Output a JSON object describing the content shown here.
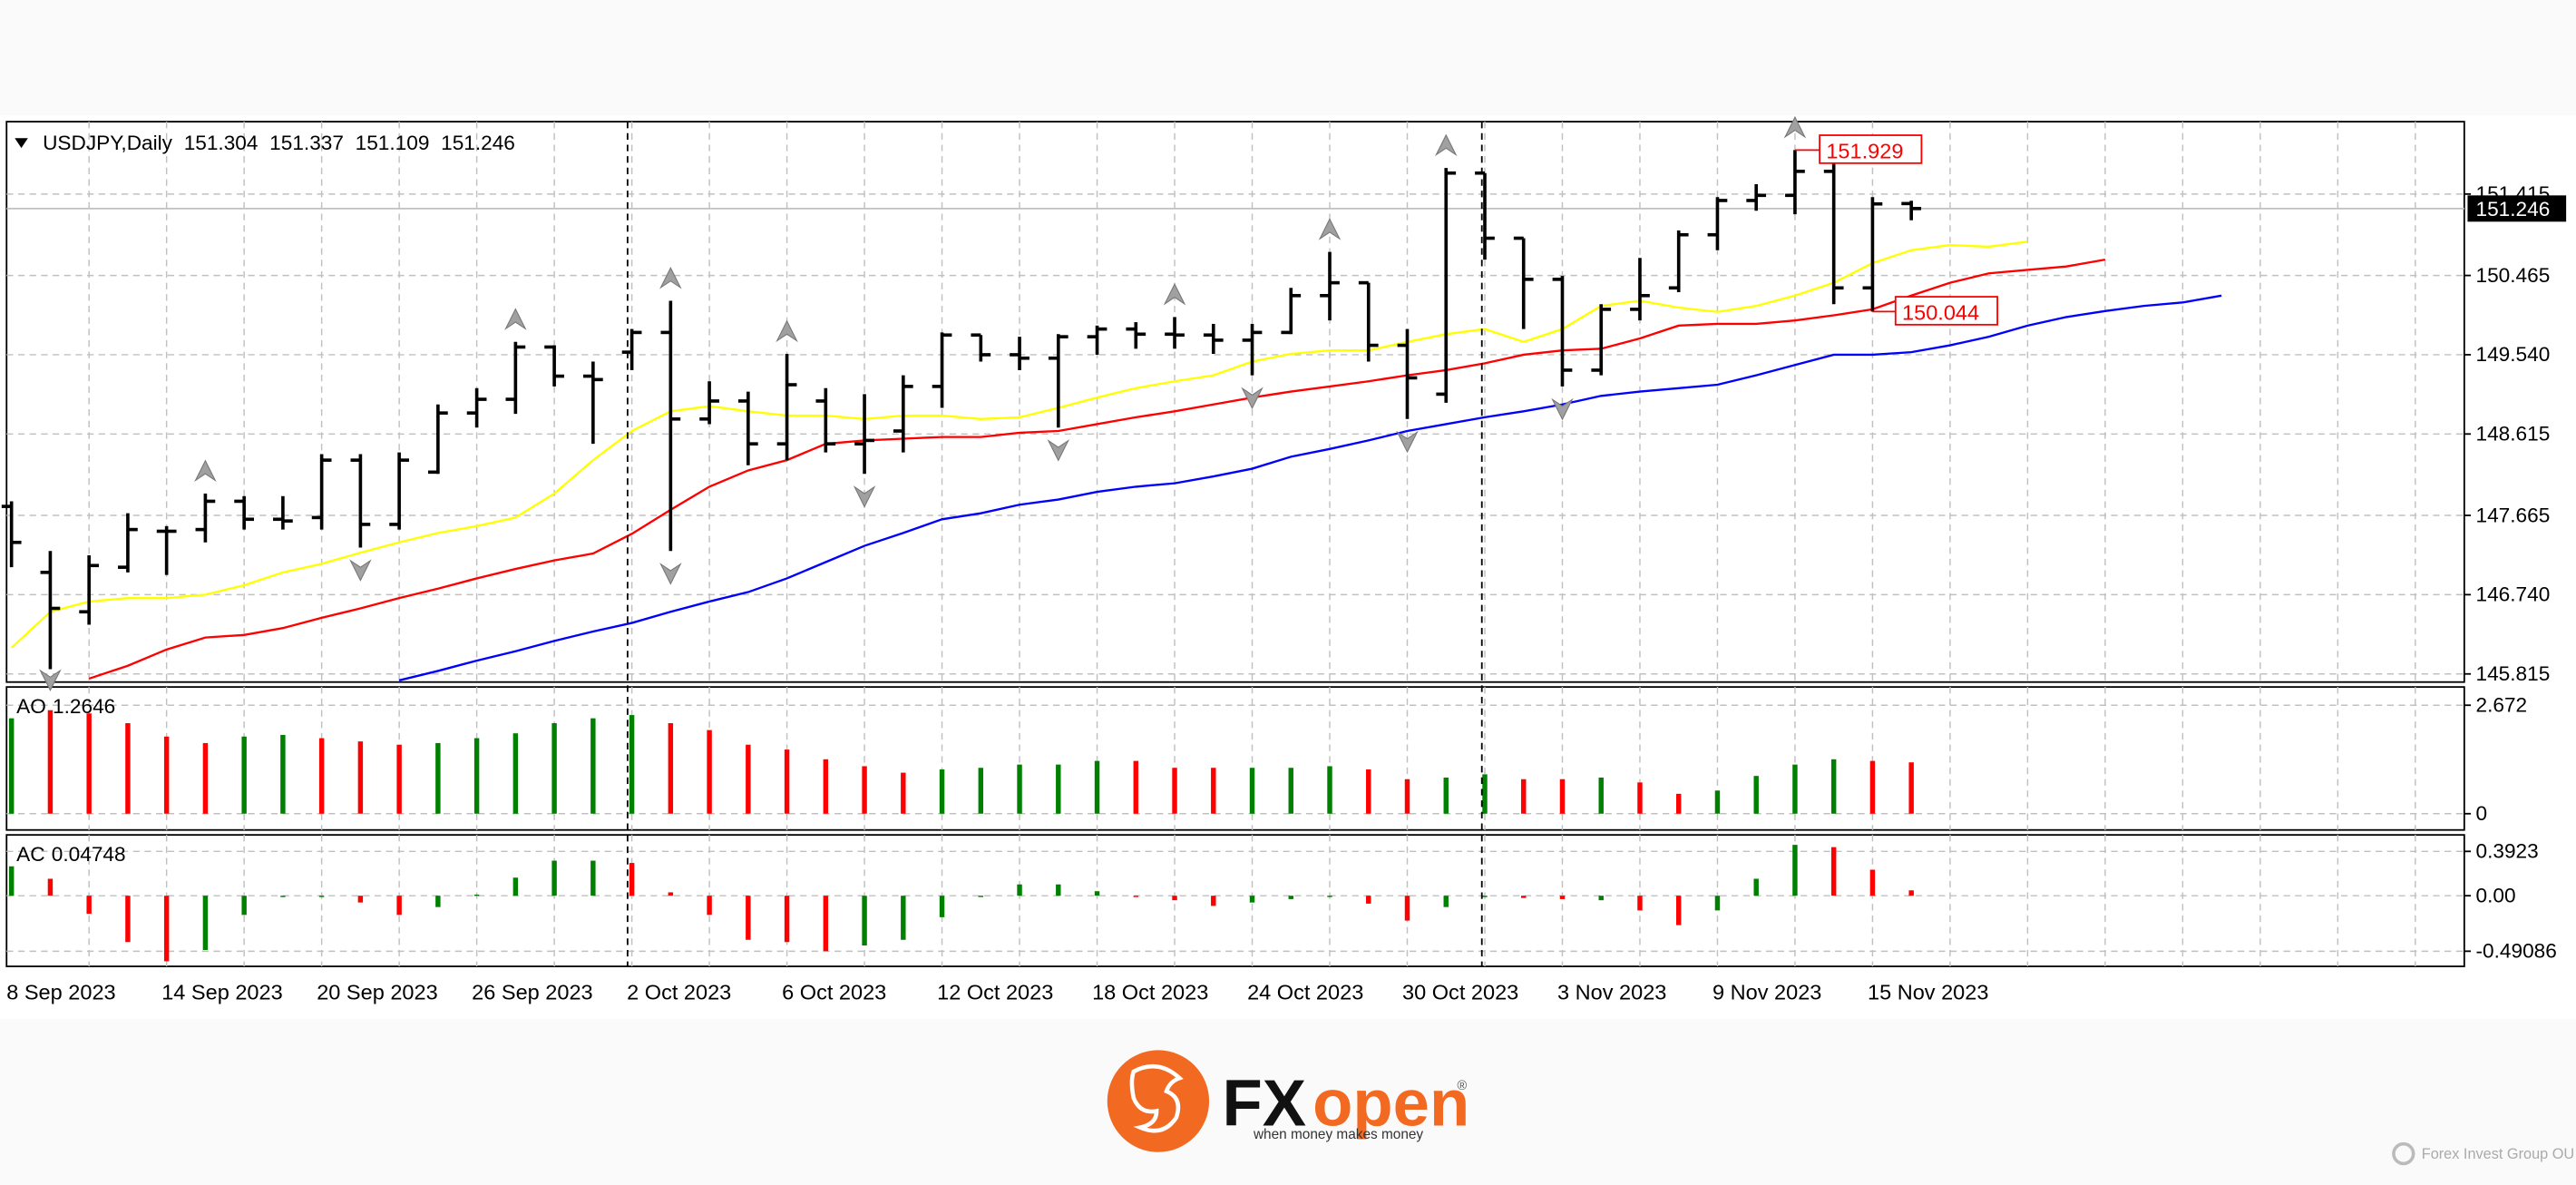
{
  "chart_data": [
    {
      "type": "ohlc",
      "title": "USDJPY,Daily",
      "categories": [
        "8 Sep 2023",
        null,
        null,
        null,
        "14 Sep 2023",
        null,
        null,
        null,
        "20 Sep 2023",
        null,
        null,
        null,
        "26 Sep 2023",
        null,
        null,
        null,
        "2 Oct 2023",
        null,
        null,
        null,
        "6 Oct 2023",
        null,
        null,
        null,
        "12 Oct 2023",
        null,
        null,
        null,
        "18 Oct 2023",
        null,
        null,
        null,
        "24 Oct 2023",
        null,
        null,
        null,
        "30 Oct 2023",
        null,
        null,
        null,
        "3 Nov 2023",
        null,
        null,
        null,
        "9 Nov 2023",
        null,
        null,
        null,
        "15 Nov 2023",
        null,
        null,
        null,
        null,
        null,
        null,
        null,
        null,
        null
      ],
      "open": [
        147.77,
        147.0,
        146.54,
        147.06,
        147.48,
        147.5,
        147.83,
        147.62,
        147.64,
        148.31,
        147.56,
        148.17,
        148.86,
        149.02,
        149.63,
        149.29,
        149.57,
        149.8,
        148.79,
        149.0,
        148.5,
        149.0,
        148.5,
        148.65,
        149.17,
        149.77,
        149.54,
        149.5,
        149.75,
        149.84,
        149.78,
        149.77,
        149.71,
        149.8,
        150.23,
        150.38,
        149.65,
        149.08,
        151.66,
        150.9,
        150.42,
        149.36,
        150.07,
        150.32,
        150.94,
        151.34,
        151.4,
        151.68,
        150.32,
        151.304,
        null,
        null,
        null,
        null,
        null,
        null,
        null,
        null
      ],
      "high": [
        147.83,
        147.25,
        147.2,
        147.69,
        147.54,
        147.92,
        147.89,
        147.89,
        148.38,
        148.38,
        148.4,
        148.96,
        149.15,
        149.69,
        149.65,
        149.46,
        149.84,
        150.17,
        149.23,
        149.11,
        149.55,
        149.15,
        149.08,
        149.3,
        149.8,
        149.77,
        149.75,
        149.78,
        149.88,
        149.92,
        149.98,
        149.9,
        149.9,
        150.32,
        150.74,
        150.38,
        149.84,
        151.72,
        151.66,
        150.9,
        150.46,
        150.13,
        150.67,
        150.99,
        151.38,
        151.53,
        151.929,
        151.8,
        151.38,
        151.337,
        null,
        null,
        null,
        null,
        null,
        null,
        null,
        null
      ],
      "low": [
        147.06,
        145.87,
        146.39,
        147.0,
        146.97,
        147.35,
        147.5,
        147.5,
        147.5,
        147.29,
        147.5,
        148.15,
        148.69,
        148.85,
        149.17,
        148.5,
        149.36,
        147.25,
        148.73,
        148.25,
        148.31,
        148.4,
        148.15,
        148.4,
        148.92,
        149.46,
        149.36,
        148.69,
        149.54,
        149.61,
        149.61,
        149.55,
        149.3,
        149.78,
        149.94,
        149.46,
        148.79,
        148.98,
        150.65,
        149.84,
        149.17,
        149.3,
        149.94,
        150.27,
        150.76,
        151.22,
        151.18,
        150.13,
        150.044,
        151.109,
        null,
        null,
        null,
        null,
        null,
        null,
        null,
        null
      ],
      "close": [
        147.35,
        146.58,
        147.08,
        147.5,
        147.48,
        147.83,
        147.62,
        147.6,
        148.31,
        147.56,
        148.31,
        148.86,
        149.02,
        149.63,
        149.29,
        149.25,
        149.8,
        148.79,
        149.0,
        148.5,
        149.19,
        148.5,
        148.54,
        149.17,
        149.77,
        149.54,
        149.5,
        149.75,
        149.84,
        149.78,
        149.77,
        149.71,
        149.8,
        150.23,
        150.38,
        149.65,
        149.27,
        151.66,
        150.9,
        150.42,
        149.36,
        150.07,
        150.23,
        150.94,
        151.34,
        151.4,
        151.68,
        150.32,
        151.3,
        151.246,
        null,
        null,
        null,
        null,
        null,
        null,
        null,
        null
      ],
      "color": "#000000",
      "lines": [
        {
          "color": "#ffff00",
          "values": [
            146.12,
            146.54,
            146.66,
            146.7,
            146.7,
            146.74,
            146.85,
            147.0,
            147.1,
            147.23,
            147.35,
            147.46,
            147.54,
            147.64,
            147.92,
            148.31,
            148.65,
            148.88,
            148.94,
            148.88,
            148.83,
            148.83,
            148.79,
            148.83,
            148.83,
            148.79,
            148.81,
            148.92,
            149.04,
            149.15,
            149.23,
            149.3,
            149.46,
            149.55,
            149.59,
            149.59,
            149.69,
            149.78,
            149.84,
            149.69,
            149.84,
            150.11,
            150.17,
            150.09,
            150.04,
            150.11,
            150.23,
            150.38,
            150.61,
            150.76,
            150.82,
            150.8,
            150.86,
            null,
            null,
            null,
            null,
            null
          ]
        },
        {
          "color": "#ff0000",
          "values": [
            null,
            null,
            145.76,
            145.91,
            146.1,
            146.24,
            146.27,
            146.35,
            146.47,
            146.58,
            146.7,
            146.81,
            146.93,
            147.04,
            147.14,
            147.22,
            147.45,
            147.73,
            148.0,
            148.19,
            148.31,
            148.5,
            148.54,
            148.56,
            148.58,
            148.58,
            148.63,
            148.65,
            148.73,
            148.81,
            148.88,
            148.96,
            149.04,
            149.11,
            149.17,
            149.23,
            149.3,
            149.36,
            149.44,
            149.54,
            149.59,
            149.61,
            149.73,
            149.88,
            149.9,
            149.9,
            149.94,
            150.0,
            150.07,
            150.23,
            150.38,
            150.49,
            150.53,
            150.57,
            150.65,
            null,
            null,
            null
          ]
        },
        {
          "color": "#0000ff",
          "values": [
            null,
            null,
            null,
            null,
            null,
            null,
            null,
            null,
            null,
            null,
            145.74,
            145.85,
            145.97,
            146.08,
            146.2,
            146.31,
            146.41,
            146.54,
            146.66,
            146.77,
            146.93,
            147.12,
            147.31,
            147.46,
            147.62,
            147.69,
            147.79,
            147.85,
            147.94,
            148.0,
            148.04,
            148.12,
            148.21,
            148.35,
            148.44,
            148.54,
            148.65,
            148.73,
            148.81,
            148.88,
            148.96,
            149.06,
            149.11,
            149.15,
            149.19,
            149.3,
            149.42,
            149.54,
            149.54,
            149.57,
            149.65,
            149.75,
            149.88,
            149.98,
            150.05,
            150.11,
            150.15,
            150.23
          ]
        }
      ],
      "fractals_up": [
        null,
        null,
        null,
        null,
        null,
        147.92,
        null,
        null,
        null,
        null,
        null,
        null,
        null,
        149.69,
        null,
        null,
        null,
        150.17,
        null,
        null,
        149.55,
        null,
        null,
        null,
        null,
        null,
        null,
        null,
        null,
        null,
        149.98,
        null,
        null,
        null,
        150.74,
        null,
        null,
        151.72,
        null,
        null,
        null,
        null,
        null,
        null,
        null,
        null,
        151.929,
        null,
        null,
        null,
        null,
        null,
        null,
        null,
        null,
        null,
        null,
        null
      ],
      "fractals_down": [
        null,
        145.87,
        null,
        null,
        null,
        null,
        null,
        null,
        null,
        147.29,
        null,
        null,
        null,
        null,
        null,
        null,
        null,
        147.25,
        null,
        null,
        null,
        null,
        148.15,
        null,
        null,
        null,
        null,
        148.69,
        null,
        null,
        null,
        null,
        149.3,
        null,
        null,
        null,
        148.79,
        null,
        null,
        null,
        149.17,
        null,
        null,
        null,
        null,
        null,
        null,
        null,
        null,
        null,
        null,
        null,
        null,
        null,
        null,
        null,
        null,
        null
      ],
      "fractal_color": "#a0a0a0",
      "ylim": [
        145.72,
        152.26
      ],
      "yticks": [
        151.415,
        150.465,
        {
          "value": 149.54,
          "label": "149.540"
        },
        148.615,
        147.665,
        {
          "value": 146.74,
          "label": "146.740"
        },
        145.815
      ],
      "grid": true
    },
    {
      "type": "bar",
      "title": "AO",
      "values": [
        2.35,
        2.55,
        2.47,
        2.23,
        1.9,
        1.74,
        1.9,
        1.94,
        1.86,
        1.78,
        1.7,
        1.74,
        1.86,
        1.98,
        2.23,
        2.35,
        2.43,
        2.23,
        2.06,
        1.7,
        1.58,
        1.34,
        1.17,
        1.01,
        1.09,
        1.13,
        1.21,
        1.21,
        1.3,
        1.3,
        1.13,
        1.13,
        1.13,
        1.13,
        1.17,
        1.09,
        0.85,
        0.89,
        0.97,
        0.85,
        0.85,
        0.89,
        0.77,
        0.49,
        0.57,
        0.93,
        1.21,
        1.34,
        1.3,
        1.2646
      ],
      "colors": [
        "#008000",
        "#ff0000",
        "#ff0000",
        "#ff0000",
        "#ff0000",
        "#ff0000",
        "#008000",
        "#008000",
        "#ff0000",
        "#ff0000",
        "#ff0000",
        "#008000",
        "#008000",
        "#008000",
        "#008000",
        "#008000",
        "#008000",
        "#ff0000",
        "#ff0000",
        "#ff0000",
        "#ff0000",
        "#ff0000",
        "#ff0000",
        "#ff0000",
        "#008000",
        "#008000",
        "#008000",
        "#008000",
        "#008000",
        "#ff0000",
        "#ff0000",
        "#ff0000",
        "#008000",
        "#008000",
        "#008000",
        "#ff0000",
        "#ff0000",
        "#008000",
        "#008000",
        "#ff0000",
        "#ff0000",
        "#008000",
        "#ff0000",
        "#ff0000",
        "#008000",
        "#008000",
        "#008000",
        "#008000",
        "#ff0000",
        "#ff0000"
      ],
      "ylim": [
        -0.32,
        3.04
      ],
      "yticks": [
        2.672,
        0
      ],
      "grid": true
    },
    {
      "type": "bar",
      "title": "AC",
      "values": [
        0.26,
        0.15,
        -0.16,
        -0.41,
        -0.58,
        -0.48,
        -0.17,
        -0.01,
        -0.01,
        -0.06,
        -0.17,
        -0.1,
        0.01,
        0.16,
        0.31,
        0.31,
        0.29,
        0.03,
        -0.17,
        -0.39,
        -0.41,
        -0.49,
        -0.44,
        -0.39,
        -0.19,
        -0.01,
        0.1,
        0.1,
        0.04,
        -0.01,
        -0.04,
        -0.09,
        -0.06,
        -0.03,
        -0.01,
        -0.07,
        -0.22,
        -0.1,
        -0.01,
        -0.02,
        -0.03,
        -0.04,
        -0.13,
        -0.26,
        -0.13,
        0.15,
        0.45,
        0.43,
        0.23,
        0.04748
      ],
      "colors": [
        "#008000",
        "#ff0000",
        "#ff0000",
        "#ff0000",
        "#ff0000",
        "#008000",
        "#008000",
        "#008000",
        "#008000",
        "#ff0000",
        "#ff0000",
        "#008000",
        "#008000",
        "#008000",
        "#008000",
        "#008000",
        "#ff0000",
        "#ff0000",
        "#ff0000",
        "#ff0000",
        "#ff0000",
        "#ff0000",
        "#008000",
        "#008000",
        "#008000",
        "#008000",
        "#008000",
        "#008000",
        "#008000",
        "#ff0000",
        "#ff0000",
        "#ff0000",
        "#008000",
        "#008000",
        "#008000",
        "#ff0000",
        "#ff0000",
        "#008000",
        "#008000",
        "#ff0000",
        "#ff0000",
        "#008000",
        "#ff0000",
        "#ff0000",
        "#008000",
        "#008000",
        "#008000",
        "#ff0000",
        "#ff0000",
        "#ff0000"
      ],
      "ylim": [
        -0.625,
        0.538
      ],
      "yticks": [
        0.3923,
        {
          "value": 0,
          "label": "0.00"
        },
        -0.49086
      ],
      "grid": true
    }
  ],
  "branding": {
    "logo_fx": "FX",
    "logo_open": "open",
    "registered": "®",
    "tagline": "when money makes money",
    "footer": "Forex Invest Group OU"
  }
}
